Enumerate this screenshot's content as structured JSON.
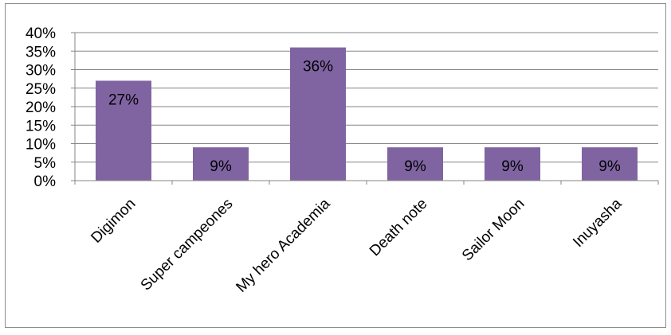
{
  "chart_data": {
    "type": "bar",
    "title": "",
    "xlabel": "",
    "ylabel": "",
    "categories": [
      "Digimon",
      "Super campeones",
      "My hero Academia",
      "Death note",
      "Sailor Moon",
      "Inuyasha"
    ],
    "values": [
      27,
      9,
      36,
      9,
      9,
      9
    ],
    "data_labels": [
      "27%",
      "9%",
      "36%",
      "9%",
      "9%",
      "9%"
    ],
    "ylim": [
      0,
      40
    ],
    "y_ticks": [
      "0%",
      "5%",
      "10%",
      "15%",
      "20%",
      "25%",
      "30%",
      "35%",
      "40%"
    ],
    "grid": true,
    "legend": "none",
    "colors": {
      "bar": "#8064a2",
      "grid": "#868686",
      "axis": "#868686"
    }
  }
}
